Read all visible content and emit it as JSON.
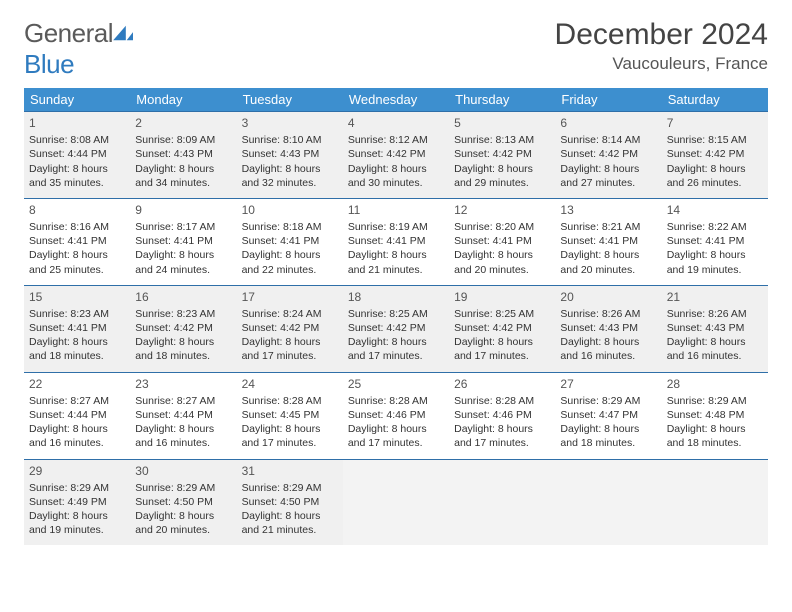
{
  "brand": {
    "part1": "General",
    "part2": "Blue"
  },
  "title": "December 2024",
  "location": "Vaucouleurs, France",
  "colors": {
    "header_bg": "#3d8fcf",
    "header_text": "#ffffff",
    "row_divider": "#2f6fa8",
    "shade_bg": "#f0f0f0",
    "plain_bg": "#ffffff",
    "text": "#333333",
    "logo_gray": "#5a5a5a",
    "logo_blue": "#2f7bbf"
  },
  "weekdays": [
    "Sunday",
    "Monday",
    "Tuesday",
    "Wednesday",
    "Thursday",
    "Friday",
    "Saturday"
  ],
  "days": [
    {
      "n": "1",
      "sr": "8:08 AM",
      "ss": "4:44 PM",
      "dl": "8 hours and 35 minutes."
    },
    {
      "n": "2",
      "sr": "8:09 AM",
      "ss": "4:43 PM",
      "dl": "8 hours and 34 minutes."
    },
    {
      "n": "3",
      "sr": "8:10 AM",
      "ss": "4:43 PM",
      "dl": "8 hours and 32 minutes."
    },
    {
      "n": "4",
      "sr": "8:12 AM",
      "ss": "4:42 PM",
      "dl": "8 hours and 30 minutes."
    },
    {
      "n": "5",
      "sr": "8:13 AM",
      "ss": "4:42 PM",
      "dl": "8 hours and 29 minutes."
    },
    {
      "n": "6",
      "sr": "8:14 AM",
      "ss": "4:42 PM",
      "dl": "8 hours and 27 minutes."
    },
    {
      "n": "7",
      "sr": "8:15 AM",
      "ss": "4:42 PM",
      "dl": "8 hours and 26 minutes."
    },
    {
      "n": "8",
      "sr": "8:16 AM",
      "ss": "4:41 PM",
      "dl": "8 hours and 25 minutes."
    },
    {
      "n": "9",
      "sr": "8:17 AM",
      "ss": "4:41 PM",
      "dl": "8 hours and 24 minutes."
    },
    {
      "n": "10",
      "sr": "8:18 AM",
      "ss": "4:41 PM",
      "dl": "8 hours and 22 minutes."
    },
    {
      "n": "11",
      "sr": "8:19 AM",
      "ss": "4:41 PM",
      "dl": "8 hours and 21 minutes."
    },
    {
      "n": "12",
      "sr": "8:20 AM",
      "ss": "4:41 PM",
      "dl": "8 hours and 20 minutes."
    },
    {
      "n": "13",
      "sr": "8:21 AM",
      "ss": "4:41 PM",
      "dl": "8 hours and 20 minutes."
    },
    {
      "n": "14",
      "sr": "8:22 AM",
      "ss": "4:41 PM",
      "dl": "8 hours and 19 minutes."
    },
    {
      "n": "15",
      "sr": "8:23 AM",
      "ss": "4:41 PM",
      "dl": "8 hours and 18 minutes."
    },
    {
      "n": "16",
      "sr": "8:23 AM",
      "ss": "4:42 PM",
      "dl": "8 hours and 18 minutes."
    },
    {
      "n": "17",
      "sr": "8:24 AM",
      "ss": "4:42 PM",
      "dl": "8 hours and 17 minutes."
    },
    {
      "n": "18",
      "sr": "8:25 AM",
      "ss": "4:42 PM",
      "dl": "8 hours and 17 minutes."
    },
    {
      "n": "19",
      "sr": "8:25 AM",
      "ss": "4:42 PM",
      "dl": "8 hours and 17 minutes."
    },
    {
      "n": "20",
      "sr": "8:26 AM",
      "ss": "4:43 PM",
      "dl": "8 hours and 16 minutes."
    },
    {
      "n": "21",
      "sr": "8:26 AM",
      "ss": "4:43 PM",
      "dl": "8 hours and 16 minutes."
    },
    {
      "n": "22",
      "sr": "8:27 AM",
      "ss": "4:44 PM",
      "dl": "8 hours and 16 minutes."
    },
    {
      "n": "23",
      "sr": "8:27 AM",
      "ss": "4:44 PM",
      "dl": "8 hours and 16 minutes."
    },
    {
      "n": "24",
      "sr": "8:28 AM",
      "ss": "4:45 PM",
      "dl": "8 hours and 17 minutes."
    },
    {
      "n": "25",
      "sr": "8:28 AM",
      "ss": "4:46 PM",
      "dl": "8 hours and 17 minutes."
    },
    {
      "n": "26",
      "sr": "8:28 AM",
      "ss": "4:46 PM",
      "dl": "8 hours and 17 minutes."
    },
    {
      "n": "27",
      "sr": "8:29 AM",
      "ss": "4:47 PM",
      "dl": "8 hours and 18 minutes."
    },
    {
      "n": "28",
      "sr": "8:29 AM",
      "ss": "4:48 PM",
      "dl": "8 hours and 18 minutes."
    },
    {
      "n": "29",
      "sr": "8:29 AM",
      "ss": "4:49 PM",
      "dl": "8 hours and 19 minutes."
    },
    {
      "n": "30",
      "sr": "8:29 AM",
      "ss": "4:50 PM",
      "dl": "8 hours and 20 minutes."
    },
    {
      "n": "31",
      "sr": "8:29 AM",
      "ss": "4:50 PM",
      "dl": "8 hours and 21 minutes."
    }
  ],
  "labels": {
    "sunrise": "Sunrise:",
    "sunset": "Sunset:",
    "daylight": "Daylight:"
  },
  "layout": {
    "first_weekday_index": 0,
    "empty_trailing": 4,
    "shaded_rows": [
      0,
      2,
      4
    ]
  }
}
